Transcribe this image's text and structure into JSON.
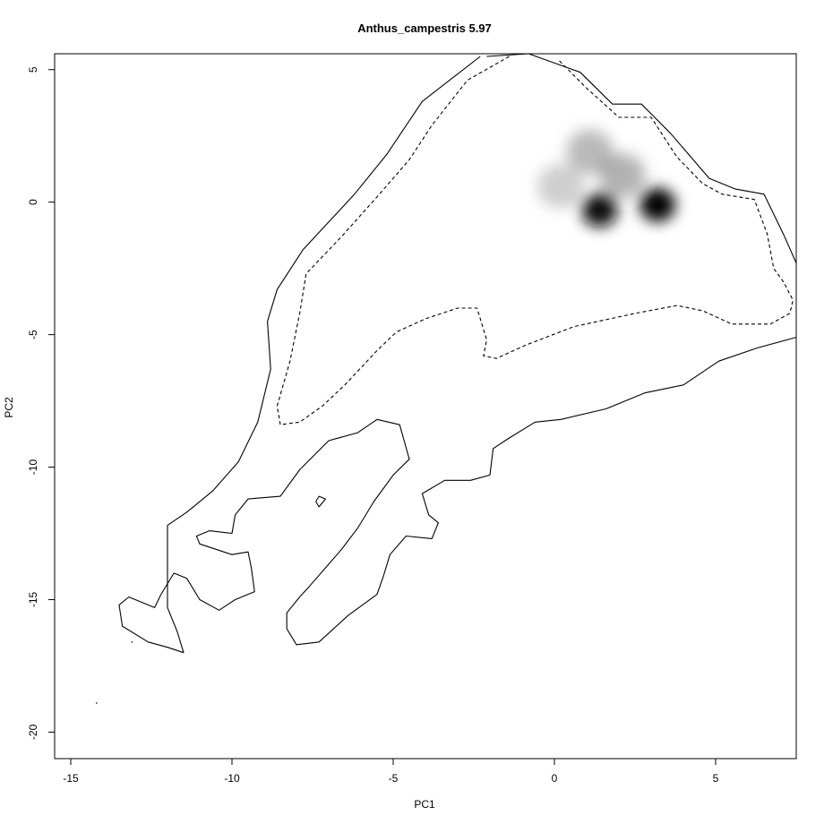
{
  "chart_data": {
    "type": "heatmap",
    "title": "Anthus_campestris 5.97",
    "xlabel": "PC1",
    "ylabel": "PC2",
    "xlim": [
      -15.5,
      7.5
    ],
    "ylim": [
      -21,
      5.6
    ],
    "x_ticks": [
      -15,
      -10,
      -5,
      0,
      5
    ],
    "y_ticks": [
      5,
      0,
      -5,
      -10,
      -15,
      -20
    ],
    "grid": false,
    "density_peaks": [
      {
        "x": 1.4,
        "y": -0.3,
        "intensity": 0.95
      },
      {
        "x": 3.2,
        "y": -0.1,
        "intensity": 1.0
      },
      {
        "x": 1.1,
        "y": 1.9,
        "intensity": 0.5
      },
      {
        "x": 2.1,
        "y": 1.0,
        "intensity": 0.55
      },
      {
        "x": 0.2,
        "y": 0.6,
        "intensity": 0.35
      }
    ],
    "contours": [
      {
        "name": "",
        "style": "solid",
        "points": [
          [
            -2.1,
            5.5
          ],
          [
            -0.8,
            5.6
          ],
          [
            0.8,
            4.9
          ],
          [
            1.8,
            3.7
          ],
          [
            2.7,
            3.7
          ],
          [
            3.6,
            2.6
          ],
          [
            4.8,
            0.9
          ],
          [
            5.6,
            0.5
          ],
          [
            6.5,
            0.3
          ],
          [
            7.1,
            -1.2
          ],
          [
            7.5,
            -2.3
          ]
        ]
      },
      {
        "name": "",
        "style": "solid",
        "points": [
          [
            -2.3,
            5.5
          ],
          [
            -4.1,
            3.8
          ],
          [
            -5.2,
            1.8
          ],
          [
            -6.2,
            0.3
          ],
          [
            -7.8,
            -1.8
          ],
          [
            -8.6,
            -3.3
          ],
          [
            -8.9,
            -4.5
          ],
          [
            -8.8,
            -6.3
          ],
          [
            -9.2,
            -8.3
          ],
          [
            -9.8,
            -9.8
          ],
          [
            -10.6,
            -10.9
          ],
          [
            -11.4,
            -11.7
          ],
          [
            -12.0,
            -12.2
          ],
          [
            -12.0,
            -13.5
          ],
          [
            -12.0,
            -15.3
          ],
          [
            -11.7,
            -16.2
          ],
          [
            -11.5,
            -17.0
          ],
          [
            -12.0,
            -16.8
          ],
          [
            -12.6,
            -16.6
          ],
          [
            -13.4,
            -16.0
          ],
          [
            -13.5,
            -15.2
          ],
          [
            -13.2,
            -14.9
          ],
          [
            -12.4,
            -15.3
          ],
          [
            -12.2,
            -14.8
          ]
        ]
      },
      {
        "name": "",
        "style": "solid",
        "points": [
          [
            7.5,
            -5.1
          ],
          [
            6.3,
            -5.5
          ],
          [
            5.1,
            -6.0
          ],
          [
            4.0,
            -6.9
          ],
          [
            2.8,
            -7.2
          ],
          [
            1.6,
            -7.8
          ],
          [
            0.2,
            -8.2
          ],
          [
            -0.6,
            -8.3
          ],
          [
            -1.4,
            -8.9
          ],
          [
            -1.9,
            -9.3
          ],
          [
            -2.0,
            -10.3
          ],
          [
            -2.6,
            -10.5
          ],
          [
            -3.4,
            -10.5
          ],
          [
            -4.1,
            -11.0
          ],
          [
            -3.9,
            -11.8
          ],
          [
            -3.6,
            -12.1
          ],
          [
            -3.8,
            -12.7
          ],
          [
            -4.6,
            -12.6
          ],
          [
            -5.1,
            -13.3
          ],
          [
            -5.3,
            -14.1
          ],
          [
            -5.5,
            -14.8
          ],
          [
            -6.4,
            -15.6
          ],
          [
            -7.3,
            -16.6
          ],
          [
            -8.0,
            -16.7
          ],
          [
            -8.3,
            -16.1
          ],
          [
            -8.3,
            -15.5
          ],
          [
            -7.9,
            -14.9
          ],
          [
            -7.6,
            -14.5
          ],
          [
            -7.1,
            -13.8
          ],
          [
            -6.6,
            -13.1
          ],
          [
            -6.1,
            -12.3
          ],
          [
            -5.6,
            -11.3
          ],
          [
            -5.0,
            -10.3
          ],
          [
            -4.5,
            -9.7
          ],
          [
            -4.8,
            -8.4
          ],
          [
            -5.5,
            -8.2
          ],
          [
            -6.1,
            -8.7
          ],
          [
            -7.0,
            -9.0
          ],
          [
            -7.9,
            -10.1
          ],
          [
            -8.5,
            -11.1
          ],
          [
            -9.5,
            -11.2
          ],
          [
            -9.9,
            -11.8
          ],
          [
            -10.0,
            -12.5
          ],
          [
            -10.7,
            -12.4
          ],
          [
            -11.1,
            -12.6
          ],
          [
            -11.0,
            -12.9
          ],
          [
            -10.0,
            -13.3
          ],
          [
            -9.5,
            -13.2
          ],
          [
            -9.4,
            -13.8
          ],
          [
            -9.3,
            -14.7
          ],
          [
            -9.9,
            -15.0
          ],
          [
            -10.4,
            -15.4
          ],
          [
            -11.0,
            -15.0
          ],
          [
            -11.4,
            -14.2
          ],
          [
            -11.8,
            -14.0
          ],
          [
            -12.2,
            -14.8
          ]
        ]
      },
      {
        "name": "",
        "style": "dashed",
        "points": [
          [
            -1.4,
            5.5
          ],
          [
            -2.7,
            4.6
          ],
          [
            -3.8,
            2.9
          ],
          [
            -4.5,
            1.6
          ],
          [
            -5.5,
            0.2
          ],
          [
            -6.6,
            -1.3
          ],
          [
            -7.7,
            -2.7
          ],
          [
            -7.9,
            -4.2
          ],
          [
            -8.2,
            -6.0
          ],
          [
            -8.6,
            -7.7
          ],
          [
            -8.5,
            -8.4
          ],
          [
            -7.9,
            -8.3
          ],
          [
            -7.2,
            -7.7
          ],
          [
            -6.5,
            -6.9
          ],
          [
            -5.5,
            -5.6
          ],
          [
            -4.9,
            -4.9
          ],
          [
            -4.0,
            -4.4
          ],
          [
            -3.0,
            -4.0
          ],
          [
            -2.4,
            -4.0
          ],
          [
            -2.1,
            -5.2
          ],
          [
            -2.2,
            -5.8
          ],
          [
            -1.8,
            -5.9
          ],
          [
            -0.9,
            -5.4
          ],
          [
            0.6,
            -4.7
          ],
          [
            2.5,
            -4.2
          ],
          [
            3.8,
            -3.9
          ],
          [
            4.6,
            -4.1
          ],
          [
            5.5,
            -4.6
          ],
          [
            6.7,
            -4.6
          ],
          [
            7.3,
            -4.2
          ],
          [
            7.4,
            -3.7
          ],
          [
            7.1,
            -3.0
          ],
          [
            6.8,
            -2.5
          ],
          [
            6.6,
            -1.2
          ],
          [
            6.2,
            0.1
          ],
          [
            5.2,
            0.3
          ],
          [
            4.6,
            0.7
          ],
          [
            3.8,
            1.7
          ],
          [
            3.0,
            3.2
          ],
          [
            2.0,
            3.2
          ],
          [
            1.0,
            4.3
          ],
          [
            0.1,
            5.4
          ]
        ]
      },
      {
        "name": "",
        "style": "solid",
        "points": [
          [
            -7.4,
            -11.3
          ],
          [
            -7.3,
            -11.1
          ],
          [
            -7.1,
            -11.2
          ],
          [
            -7.3,
            -11.5
          ],
          [
            -7.4,
            -11.3
          ]
        ]
      }
    ],
    "stray_points": [
      [
        -13.1,
        -16.6
      ],
      [
        -14.2,
        -18.9
      ]
    ]
  }
}
